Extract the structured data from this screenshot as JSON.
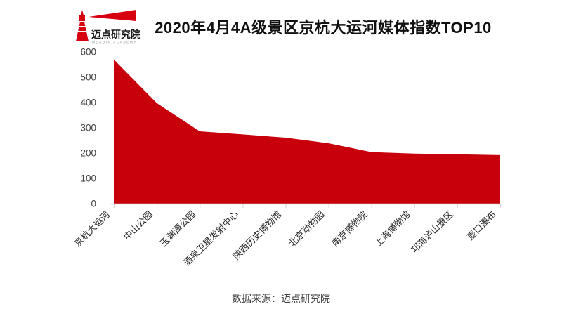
{
  "brand": {
    "name": "迈点研究院",
    "subtitle": "MEADIN ACADEMY"
  },
  "title": "2020年4月4A级景区京杭大运河媒体指数TOP10",
  "footer": "数据来源：迈点研究院",
  "colors": {
    "area": "#C7000B",
    "brand_red": "#D7000F",
    "axis_line": "#D9D9D9",
    "y_label": "#404040",
    "x_label": "#262626",
    "brand_text": "#1A1A1A",
    "brand_subtext": "#909090"
  },
  "chart_data": {
    "type": "area",
    "title": "2020年4月4A级景区京杭大运河媒体指数TOP10",
    "categories": [
      "京杭大运河",
      "中山公园",
      "玉渊潭公园",
      "酒泉卫星发射中心",
      "陕西历史博物馆",
      "北京动物园",
      "南京博物院",
      "上海博物馆",
      "邛海泸山景区",
      "壶口瀑布"
    ],
    "values": [
      570,
      398,
      286,
      274,
      261,
      239,
      204,
      198,
      195,
      192
    ],
    "xlabel": "",
    "ylabel": "",
    "ylim": [
      0,
      600
    ],
    "y_ticks": [
      0,
      100,
      200,
      300,
      400,
      500,
      600
    ],
    "grid": false,
    "legend": false,
    "x_tick_marks": true
  }
}
